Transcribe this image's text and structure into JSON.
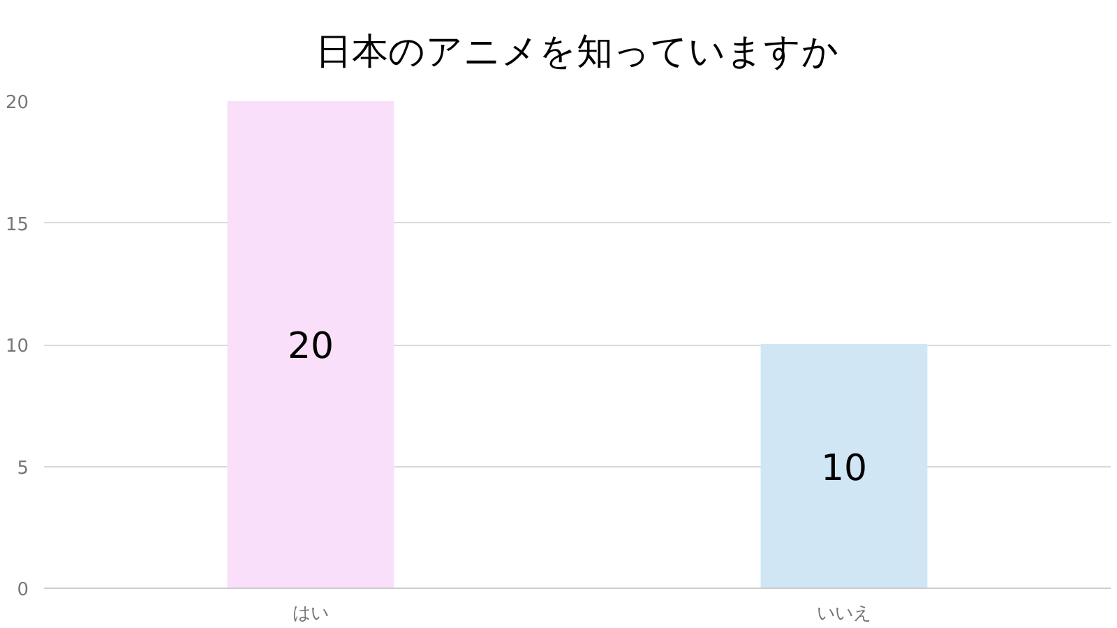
{
  "chart_data": {
    "type": "bar",
    "title": "日本のアニメを知っていますか",
    "categories": [
      "はい",
      "いいえ"
    ],
    "values": [
      20,
      10
    ],
    "colors": [
      "#f9dffa",
      "#d0e6f5"
    ],
    "ylim": [
      0,
      20
    ],
    "yticks": [
      0,
      5,
      10,
      15,
      20
    ],
    "grid": "y",
    "data_labels": true
  }
}
